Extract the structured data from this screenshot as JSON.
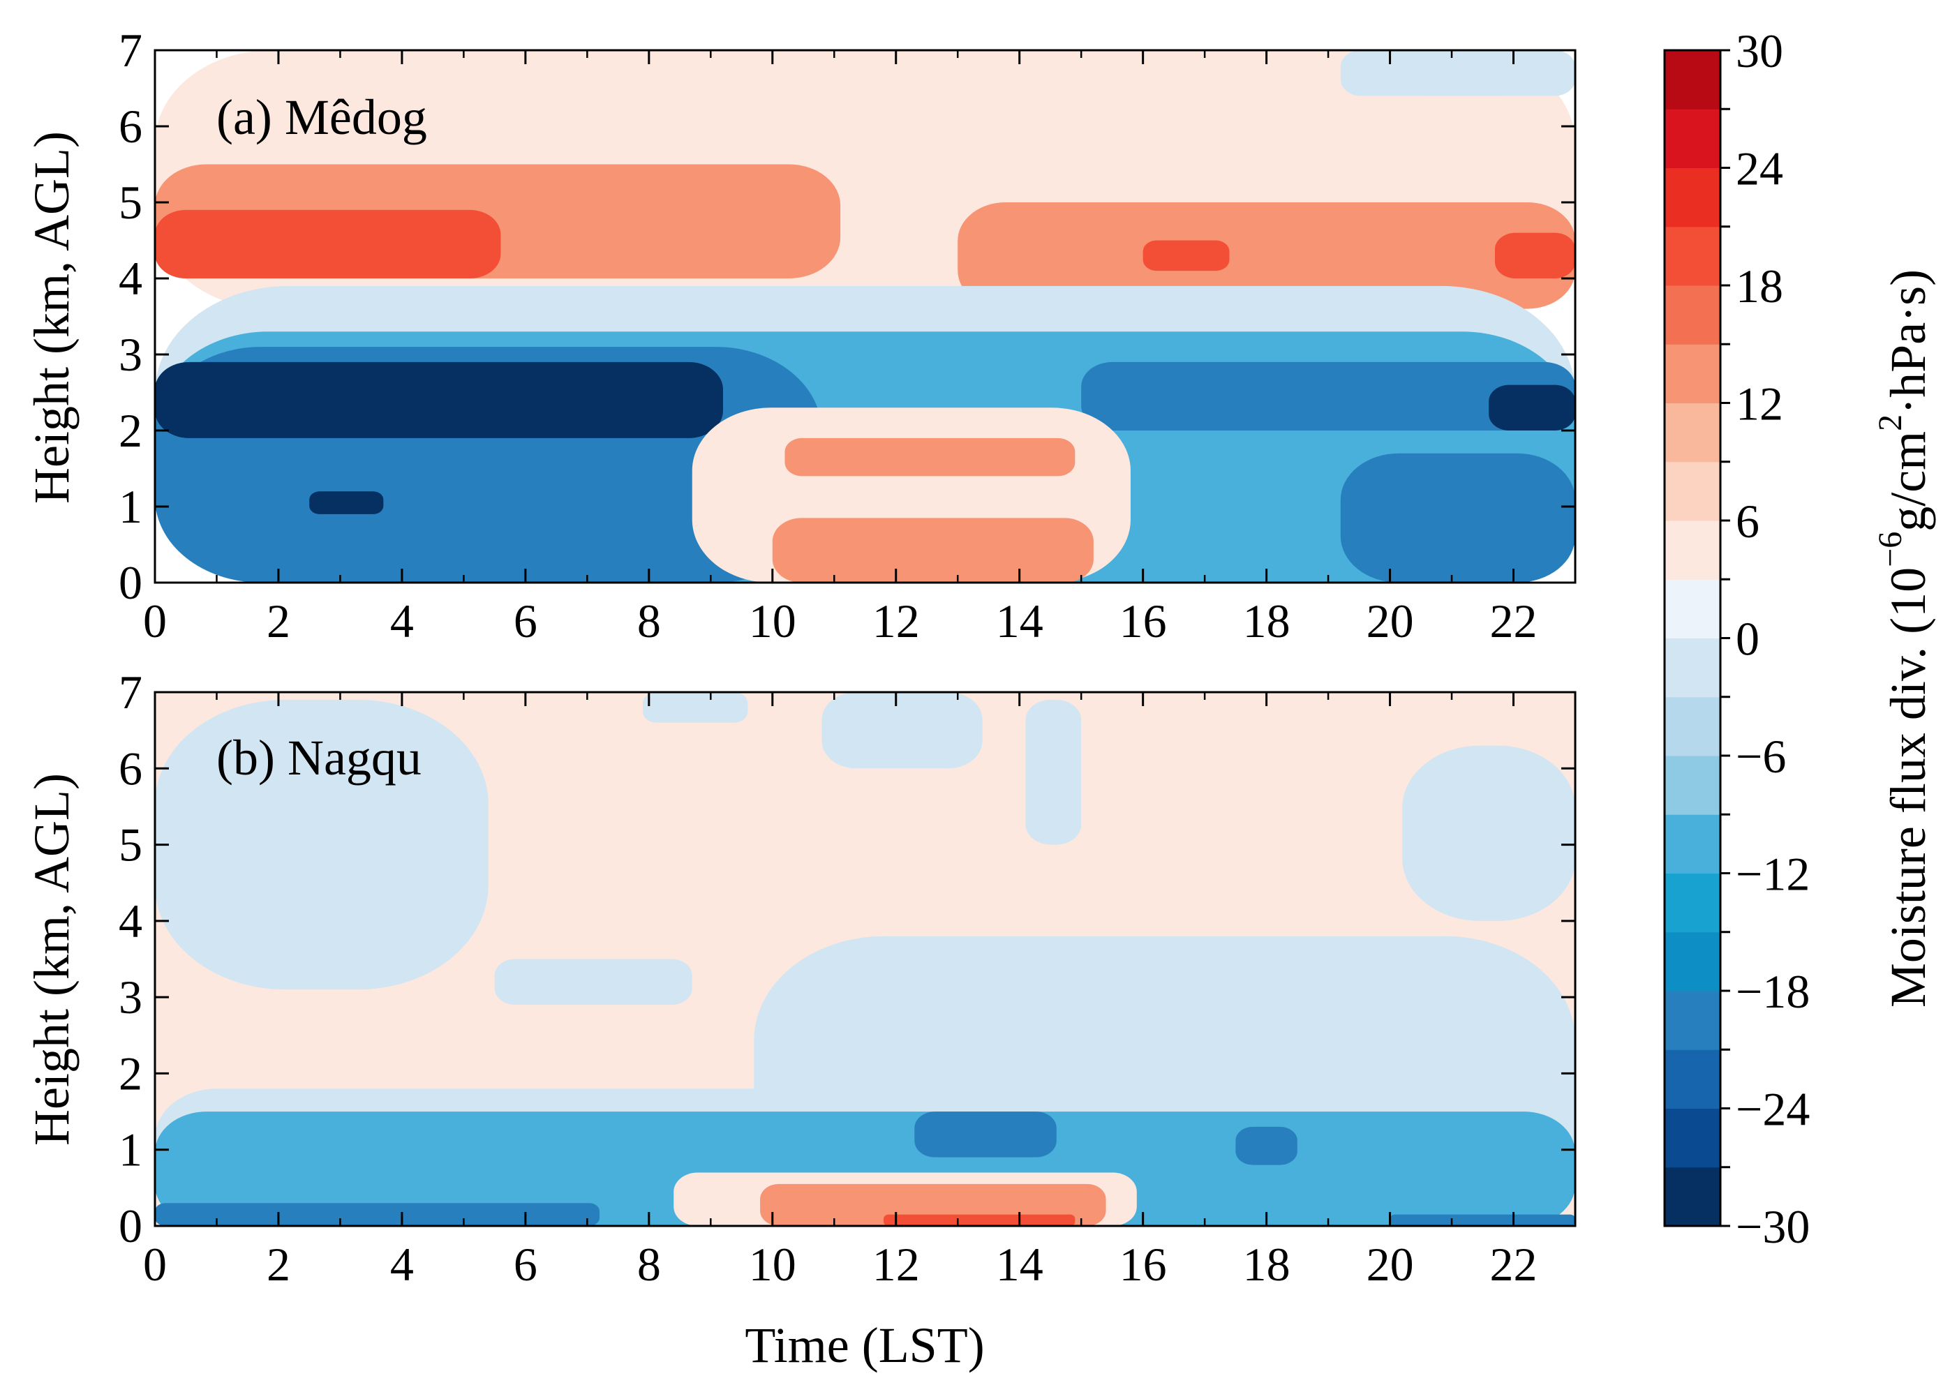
{
  "chart_data": [
    {
      "type": "heatmap",
      "panel": "a",
      "title": "(a) Mêdog",
      "xlabel": "",
      "ylabel": "Height (km, AGL)",
      "xlim": [
        0,
        23
      ],
      "ylim": [
        0,
        7
      ],
      "xticks": [
        "0",
        "2",
        "4",
        "6",
        "8",
        "10",
        "12",
        "14",
        "16",
        "18",
        "20",
        "22"
      ],
      "yticks": [
        "0",
        "1",
        "2",
        "3",
        "4",
        "5",
        "6",
        "7"
      ],
      "regions": [
        {
          "name": "upper-positive-layer",
          "level": 4,
          "x": [
            0,
            23
          ],
          "y": [
            3.6,
            7
          ]
        },
        {
          "name": "upper-right-negative",
          "level": -3,
          "x": [
            19.2,
            23
          ],
          "y": [
            6.4,
            7
          ]
        },
        {
          "name": "positive-band-left",
          "level": 13,
          "x": [
            0,
            11.1
          ],
          "y": [
            4.0,
            5.5
          ]
        },
        {
          "name": "max-core-left",
          "level": 19,
          "x": [
            0,
            5.6
          ],
          "y": [
            4.0,
            4.9
          ]
        },
        {
          "name": "positive-band-right",
          "level": 13,
          "x": [
            13,
            23
          ],
          "y": [
            3.6,
            5.0
          ]
        },
        {
          "name": "max-core-right-1",
          "level": 19,
          "x": [
            16.0,
            17.4
          ],
          "y": [
            4.1,
            4.5
          ]
        },
        {
          "name": "max-core-right-2",
          "level": 19,
          "x": [
            21.7,
            23
          ],
          "y": [
            4.0,
            4.6
          ]
        },
        {
          "name": "weak-negative-layer",
          "level": -3,
          "x": [
            0,
            23
          ],
          "y": [
            0,
            3.9
          ]
        },
        {
          "name": "moderate-negative-layer",
          "level": -12,
          "x": [
            0,
            23
          ],
          "y": [
            0,
            3.3
          ]
        },
        {
          "name": "strong-negative-left",
          "level": -20,
          "x": [
            0,
            10.8
          ],
          "y": [
            0,
            3.1
          ]
        },
        {
          "name": "extreme-negative-core",
          "level": -30,
          "x": [
            0,
            9.2
          ],
          "y": [
            1.9,
            2.9
          ]
        },
        {
          "name": "extreme-negative-small",
          "level": -30,
          "x": [
            2.5,
            3.7
          ],
          "y": [
            0.9,
            1.2
          ]
        },
        {
          "name": "strong-negative-right",
          "level": -20,
          "x": [
            15,
            23
          ],
          "y": [
            2.0,
            2.9
          ]
        },
        {
          "name": "strong-negative-right-low",
          "level": -20,
          "x": [
            19.2,
            23
          ],
          "y": [
            0,
            1.7
          ]
        },
        {
          "name": "extreme-negative-right",
          "level": -30,
          "x": [
            21.6,
            23
          ],
          "y": [
            2.0,
            2.6
          ]
        },
        {
          "name": "midday-positive-weak",
          "level": 4,
          "x": [
            8.7,
            15.8
          ],
          "y": [
            0,
            2.3
          ]
        },
        {
          "name": "midday-positive-core-upper",
          "level": 14,
          "x": [
            10.2,
            14.9
          ],
          "y": [
            1.4,
            1.9
          ]
        },
        {
          "name": "midday-positive-core-lower",
          "level": 14,
          "x": [
            10,
            15.2
          ],
          "y": [
            0,
            0.85
          ]
        }
      ]
    },
    {
      "type": "heatmap",
      "panel": "b",
      "title": "(b) Nagqu",
      "xlabel": "Time (LST)",
      "ylabel": "Height (km, AGL)",
      "xlim": [
        0,
        23
      ],
      "ylim": [
        0,
        7
      ],
      "xticks": [
        "0",
        "2",
        "4",
        "6",
        "8",
        "10",
        "12",
        "14",
        "16",
        "18",
        "20",
        "22"
      ],
      "yticks": [
        "0",
        "1",
        "2",
        "3",
        "4",
        "5",
        "6",
        "7"
      ],
      "regions": [
        {
          "name": "background-positive",
          "level": 4,
          "x": [
            0,
            23
          ],
          "y": [
            0,
            7
          ]
        },
        {
          "name": "upper-left-negative",
          "level": -3,
          "x": [
            0,
            5.4
          ],
          "y": [
            3.1,
            6.9
          ]
        },
        {
          "name": "top-negative-1",
          "level": -3,
          "x": [
            7.9,
            9.6
          ],
          "y": [
            6.6,
            7
          ]
        },
        {
          "name": "top-negative-2",
          "level": -3,
          "x": [
            10.8,
            13.4
          ],
          "y": [
            6.0,
            7
          ]
        },
        {
          "name": "top-negative-3",
          "level": -3,
          "x": [
            14.1,
            15.0
          ],
          "y": [
            5.0,
            6.9
          ]
        },
        {
          "name": "right-negative",
          "level": -3,
          "x": [
            20.2,
            23
          ],
          "y": [
            4.0,
            6.3
          ]
        },
        {
          "name": "mid-negative-1",
          "level": -3,
          "x": [
            5.5,
            8.7
          ],
          "y": [
            2.9,
            3.5
          ]
        },
        {
          "name": "mid-negative-2",
          "level": -3,
          "x": [
            9.7,
            23
          ],
          "y": [
            0,
            3.8
          ]
        },
        {
          "name": "low-negative-band",
          "level": -3,
          "x": [
            0,
            23
          ],
          "y": [
            0,
            1.8
          ]
        },
        {
          "name": "low-moderate-negative",
          "level": -12,
          "x": [
            0,
            23
          ],
          "y": [
            0,
            1.5
          ]
        },
        {
          "name": "strong-negative-core-1",
          "level": -20,
          "x": [
            12.3,
            14.6
          ],
          "y": [
            0.9,
            1.5
          ]
        },
        {
          "name": "strong-negative-core-2",
          "level": -20,
          "x": [
            17.5,
            18.5
          ],
          "y": [
            0.8,
            1.3
          ]
        },
        {
          "name": "surface-strong-negative",
          "level": -20,
          "x": [
            0,
            7.2
          ],
          "y": [
            0,
            0.3
          ]
        },
        {
          "name": "surface-negative-right",
          "level": -20,
          "x": [
            20,
            23
          ],
          "y": [
            0,
            0.15
          ]
        },
        {
          "name": "midday-positive-weak",
          "level": 4,
          "x": [
            8.4,
            15.9
          ],
          "y": [
            0,
            0.7
          ]
        },
        {
          "name": "midday-positive-core",
          "level": 14,
          "x": [
            9.8,
            15.4
          ],
          "y": [
            0,
            0.55
          ]
        },
        {
          "name": "midday-max-core",
          "level": 19,
          "x": [
            11.8,
            14.9
          ],
          "y": [
            0,
            0.15
          ]
        }
      ]
    }
  ],
  "colorbar": {
    "label": "Moisture flux div. (10",
    "label_exp1": "−6",
    "label_mid": "g/cm",
    "label_exp2": "2",
    "label_end": "·hPa·s)",
    "levels": [
      -30,
      -27,
      -24,
      -21,
      -18,
      -15,
      -12,
      -9,
      -6,
      -3,
      0,
      3,
      6,
      9,
      12,
      15,
      18,
      21,
      24,
      27,
      30
    ],
    "ticks": [
      "30",
      "24",
      "18",
      "12",
      "6",
      "0",
      "−6",
      "−12",
      "−18",
      "−24",
      "−30"
    ],
    "colors": [
      "#053061",
      "#0a4a91",
      "#1766ad",
      "#2780bd",
      "#0d8fc6",
      "#17a2cf",
      "#48b0da",
      "#8ecae3",
      "#b6d8ec",
      "#d2e5f3",
      "#ecf3fb",
      "#fde8df",
      "#fcd3c0",
      "#f9b89b",
      "#f79473",
      "#f47052",
      "#f34f37",
      "#ea2e21",
      "#d9141f",
      "#b70a14",
      "#7a0009"
    ]
  }
}
